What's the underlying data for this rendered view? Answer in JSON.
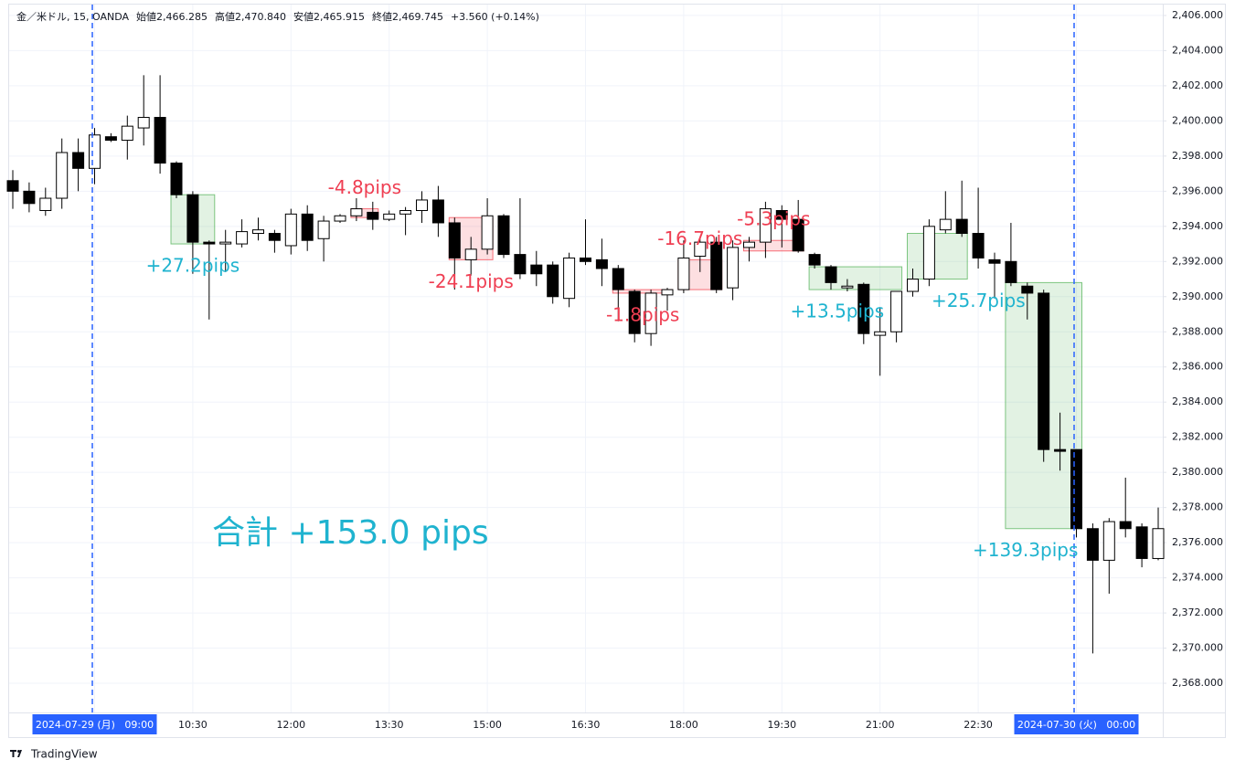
{
  "chart_data": {
    "type": "candlestick",
    "header": [
      "金／米ドル, 15, OANDA",
      "始値2,466.285",
      "高値2,470.840",
      "安値2,465.915",
      "終値2,469.745",
      "+3.560 (+0.14%)"
    ],
    "categories": [
      null,
      null,
      null,
      null,
      null,
      "2024-07-29 (月)   09:00",
      null,
      null,
      null,
      null,
      null,
      "10:30",
      null,
      null,
      null,
      null,
      null,
      "12:00",
      null,
      null,
      null,
      null,
      null,
      "13:30",
      null,
      null,
      null,
      null,
      null,
      "15:00",
      null,
      null,
      null,
      null,
      null,
      "16:30",
      null,
      null,
      null,
      null,
      null,
      "18:00",
      null,
      null,
      null,
      null,
      null,
      "19:30",
      null,
      null,
      null,
      null,
      null,
      "21:00",
      null,
      null,
      null,
      null,
      null,
      "22:30",
      null,
      null,
      null,
      null,
      null,
      "2024-07-30 (火)   00:00",
      null,
      null,
      null,
      null,
      null
    ],
    "series": [
      {
        "open": [
          2396.6,
          2396.0,
          2394.9,
          2395.6,
          2398.2,
          2397.3,
          2399.1,
          2398.9,
          2399.6,
          2400.2,
          2397.6,
          2395.8,
          2393.1,
          2393.0,
          2393.0,
          2393.6,
          2393.6,
          2392.9,
          2394.7,
          2393.3,
          2394.3,
          2394.6,
          2394.8,
          2394.4,
          2394.7,
          2394.9,
          2395.5,
          2394.2,
          2392.1,
          2392.7,
          2394.6,
          2392.4,
          2391.8,
          2391.8,
          2389.9,
          2392.2,
          2392.1,
          2391.6,
          2390.3,
          2387.9,
          2390.1,
          2390.4,
          2392.3,
          2393.1,
          2390.5,
          2392.8,
          2393.1,
          2394.9,
          2394.4,
          2392.4,
          2391.7,
          2390.5,
          2390.7,
          2387.8,
          2388.0,
          2390.3,
          2391.0,
          2393.8,
          2394.4,
          2393.6,
          2392.1,
          2392.0,
          2390.6,
          2390.2,
          2381.3,
          2381.3,
          2376.8,
          2375.0,
          2377.2,
          2376.9,
          2375.1
        ],
        "high": [
          2397.2,
          2396.5,
          2396.2,
          2399.0,
          2399.0,
          2399.6,
          2399.3,
          2400.3,
          2402.6,
          2402.6,
          2397.7,
          2396.0,
          2393.2,
          2393.8,
          2394.4,
          2394.5,
          2393.8,
          2395.0,
          2395.2,
          2394.6,
          2394.7,
          2395.6,
          2395.4,
          2394.9,
          2395.1,
          2396.0,
          2396.3,
          2394.5,
          2393.4,
          2395.6,
          2394.7,
          2395.6,
          2392.6,
          2392.0,
          2392.5,
          2394.4,
          2393.3,
          2391.8,
          2390.4,
          2390.4,
          2390.5,
          2393.2,
          2393.3,
          2393.4,
          2393.2,
          2393.4,
          2395.4,
          2395.2,
          2395.5,
          2392.5,
          2391.8,
          2391.0,
          2390.8,
          2389.4,
          2390.3,
          2391.6,
          2394.4,
          2396.0,
          2396.6,
          2396.2,
          2392.5,
          2394.2,
          2390.8,
          2390.4,
          2383.4,
          2381.3,
          2377.1,
          2377.4,
          2379.7,
          2377.1,
          2378.0
        ],
        "low": [
          2395.0,
          2394.8,
          2394.6,
          2395.0,
          2396.0,
          2396.4,
          2398.8,
          2397.8,
          2398.6,
          2397.0,
          2395.6,
          2391.3,
          2388.7,
          2391.4,
          2392.8,
          2393.2,
          2392.5,
          2392.4,
          2392.6,
          2392.0,
          2394.2,
          2394.3,
          2393.8,
          2394.3,
          2393.5,
          2394.2,
          2393.4,
          2390.4,
          2391.2,
          2392.4,
          2392.2,
          2391.0,
          2390.6,
          2389.6,
          2389.4,
          2391.8,
          2390.6,
          2388.6,
          2387.4,
          2387.2,
          2389.2,
          2390.2,
          2391.4,
          2390.2,
          2389.8,
          2392.0,
          2392.2,
          2392.8,
          2392.5,
          2391.6,
          2390.4,
          2390.3,
          2387.3,
          2385.5,
          2387.4,
          2390.0,
          2390.6,
          2393.6,
          2393.4,
          2391.6,
          2389.9,
          2390.6,
          2388.7,
          2380.6,
          2380.1,
          2376.3,
          2369.7,
          2373.1,
          2376.3,
          2374.6,
          2375.0
        ],
        "close": [
          2396.0,
          2395.3,
          2395.6,
          2398.2,
          2397.3,
          2399.2,
          2398.9,
          2399.7,
          2400.2,
          2397.6,
          2395.8,
          2393.1,
          2393.0,
          2393.1,
          2393.7,
          2393.8,
          2393.2,
          2394.7,
          2393.2,
          2394.3,
          2394.6,
          2395.0,
          2394.4,
          2394.7,
          2394.9,
          2395.5,
          2394.2,
          2392.2,
          2392.7,
          2394.6,
          2392.4,
          2391.3,
          2391.3,
          2390.0,
          2392.2,
          2392.0,
          2391.6,
          2390.4,
          2387.9,
          2390.2,
          2390.4,
          2392.2,
          2393.1,
          2390.4,
          2392.8,
          2393.1,
          2395.0,
          2394.4,
          2392.6,
          2391.8,
          2390.8,
          2390.6,
          2387.9,
          2388.0,
          2390.3,
          2391.0,
          2394.0,
          2394.4,
          2393.6,
          2392.2,
          2391.9,
          2390.8,
          2390.2,
          2381.3,
          2381.2,
          2376.8,
          2375.0,
          2377.2,
          2376.8,
          2375.1,
          2376.8
        ]
      }
    ],
    "trades": [
      {
        "label": "+27.2pips",
        "start": 10,
        "end": 12,
        "top": 2395.8,
        "bottom": 2393.0,
        "color": "#4caf50",
        "text_color": "#1fb3cf"
      },
      {
        "label": "-4.8pips",
        "start": 21,
        "end": 22,
        "top": 2395.0,
        "bottom": 2394.5,
        "color": "#f23645",
        "text_color": "#ef3e52"
      },
      {
        "label": "-24.1pips",
        "start": 27,
        "end": 29,
        "top": 2394.5,
        "bottom": 2392.1,
        "color": "#f23645",
        "text_color": "#ef3e52"
      },
      {
        "label": "-1.8pips",
        "start": 37,
        "end": 40,
        "top": 2390.4,
        "bottom": 2390.2,
        "color": "#f23645",
        "text_color": "#ef3e52"
      },
      {
        "label": "-16.7pips",
        "start": 41,
        "end": 43,
        "top": 2392.1,
        "bottom": 2390.4,
        "color": "#f23645",
        "text_color": "#ef3e52"
      },
      {
        "label": "-5.3pips",
        "start": 45,
        "end": 48,
        "top": 2393.2,
        "bottom": 2392.6,
        "color": "#f23645",
        "text_color": "#ef3e52"
      },
      {
        "label": "+13.5pips",
        "start": 49,
        "end": 54,
        "top": 2391.7,
        "bottom": 2390.4,
        "color": "#4caf50",
        "text_color": "#1fb3cf"
      },
      {
        "label": "+25.7pips",
        "start": 55,
        "end": 58,
        "top": 2393.6,
        "bottom": 2391.0,
        "color": "#4caf50",
        "text_color": "#1fb3cf"
      },
      {
        "label": "+139.3pips",
        "start": 61,
        "end": 65,
        "top": 2390.8,
        "bottom": 2376.8,
        "color": "#4caf50",
        "text_color": "#1fb3cf"
      }
    ],
    "total": "合計 +153.0 pips",
    "ylim": [
      2366.34,
      2406.62
    ],
    "yticks": [
      {
        "value": 2368,
        "label": "2,368.000"
      },
      {
        "value": 2370,
        "label": "2,370.000"
      },
      {
        "value": 2372,
        "label": "2,372.000"
      },
      {
        "value": 2374,
        "label": "2,374.000"
      },
      {
        "value": 2376,
        "label": "2,376.000"
      },
      {
        "value": 2378,
        "label": "2,378.000"
      },
      {
        "value": 2380,
        "label": "2,380.000"
      },
      {
        "value": 2382,
        "label": "2,382.000"
      },
      {
        "value": 2384,
        "label": "2,384.000"
      },
      {
        "value": 2386,
        "label": "2,386.000"
      },
      {
        "value": 2388,
        "label": "2,388.000"
      },
      {
        "value": 2390,
        "label": "2,390.000"
      },
      {
        "value": 2392,
        "label": "2,392.000"
      },
      {
        "value": 2394,
        "label": "2,394.000"
      },
      {
        "value": 2396,
        "label": "2,396.000"
      },
      {
        "value": 2398,
        "label": "2,398.000"
      },
      {
        "value": 2400,
        "label": "2,400.000"
      },
      {
        "value": 2402,
        "label": "2,402.000"
      },
      {
        "value": 2404,
        "label": "2,404.000"
      },
      {
        "value": 2406,
        "label": "2,406.000"
      }
    ],
    "grid": true,
    "up_color": "#ffffff",
    "down_color": "#000000",
    "brand": "TradingView"
  }
}
